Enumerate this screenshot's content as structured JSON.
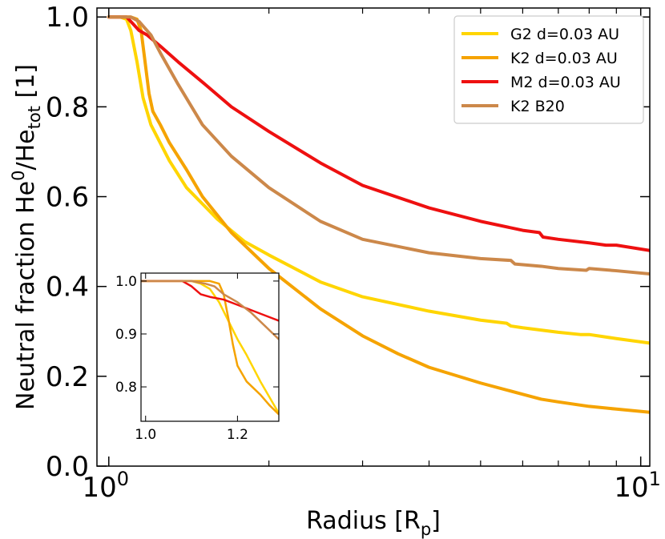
{
  "chart_data": {
    "type": "line",
    "title": "",
    "xlabel": "Radius [R",
    "xlabel_sub": "p",
    "xlabel_tail": "]",
    "ylabel_parts": {
      "main": "Neutral fraction He",
      "sup": "0",
      "mid": "/He",
      "sub": "tot",
      "tail": " [1]"
    },
    "xscale": "log",
    "xlim": [
      0.95,
      10.4
    ],
    "ylim": [
      0.0,
      1.02
    ],
    "yticks": [
      {
        "value": 0.0,
        "label": "0.0"
      },
      {
        "value": 0.2,
        "label": "0.2"
      },
      {
        "value": 0.4,
        "label": "0.4"
      },
      {
        "value": 0.6,
        "label": "0.6"
      },
      {
        "value": 0.8,
        "label": "0.8"
      },
      {
        "value": 1.0,
        "label": "1.0"
      }
    ],
    "xticks_major": [
      {
        "value": 1,
        "base": "10",
        "exp": "0"
      },
      {
        "value": 10,
        "base": "10",
        "exp": "1"
      }
    ],
    "xticks_minor": [
      2,
      3,
      4,
      5,
      6,
      7,
      8,
      9
    ],
    "legend_position": "top-right",
    "series": [
      {
        "name": "G2 d=0.03 AU",
        "color": "#FFD500",
        "points": [
          [
            1.0,
            1.0
          ],
          [
            1.05,
            1.0
          ],
          [
            1.08,
            0.995
          ],
          [
            1.1,
            0.97
          ],
          [
            1.13,
            0.9
          ],
          [
            1.16,
            0.82
          ],
          [
            1.2,
            0.76
          ],
          [
            1.3,
            0.68
          ],
          [
            1.4,
            0.62
          ],
          [
            1.6,
            0.55
          ],
          [
            1.8,
            0.5
          ],
          [
            2.0,
            0.47
          ],
          [
            2.5,
            0.41
          ],
          [
            3.0,
            0.377
          ],
          [
            4.0,
            0.345
          ],
          [
            5.0,
            0.325
          ],
          [
            5.6,
            0.318
          ],
          [
            5.7,
            0.312
          ],
          [
            6.0,
            0.308
          ],
          [
            7.0,
            0.298
          ],
          [
            7.7,
            0.293
          ],
          [
            8.0,
            0.293
          ],
          [
            9.0,
            0.284
          ],
          [
            10.4,
            0.274
          ]
        ]
      },
      {
        "name": "K2 d=0.03 AU",
        "color": "#F5A300",
        "points": [
          [
            1.0,
            1.0
          ],
          [
            1.1,
            1.0
          ],
          [
            1.13,
            0.995
          ],
          [
            1.15,
            0.97
          ],
          [
            1.17,
            0.9
          ],
          [
            1.19,
            0.83
          ],
          [
            1.21,
            0.79
          ],
          [
            1.25,
            0.76
          ],
          [
            1.3,
            0.72
          ],
          [
            1.4,
            0.66
          ],
          [
            1.5,
            0.6
          ],
          [
            1.7,
            0.52
          ],
          [
            2.0,
            0.44
          ],
          [
            2.5,
            0.35
          ],
          [
            3.0,
            0.29
          ],
          [
            3.5,
            0.25
          ],
          [
            4.0,
            0.22
          ],
          [
            5.0,
            0.185
          ],
          [
            6.0,
            0.16
          ],
          [
            6.5,
            0.149
          ],
          [
            7.0,
            0.143
          ],
          [
            8.0,
            0.133
          ],
          [
            9.0,
            0.127
          ],
          [
            10.4,
            0.12
          ]
        ]
      },
      {
        "name": "M2 d=0.03 AU",
        "color": "#EE1010",
        "points": [
          [
            1.0,
            1.0
          ],
          [
            1.08,
            1.0
          ],
          [
            1.11,
            0.985
          ],
          [
            1.14,
            0.97
          ],
          [
            1.18,
            0.96
          ],
          [
            1.25,
            0.935
          ],
          [
            1.35,
            0.9
          ],
          [
            1.5,
            0.855
          ],
          [
            1.7,
            0.8
          ],
          [
            2.0,
            0.745
          ],
          [
            2.5,
            0.675
          ],
          [
            3.0,
            0.625
          ],
          [
            4.0,
            0.575
          ],
          [
            5.0,
            0.545
          ],
          [
            6.0,
            0.525
          ],
          [
            6.45,
            0.52
          ],
          [
            6.55,
            0.51
          ],
          [
            7.0,
            0.505
          ],
          [
            8.0,
            0.497
          ],
          [
            8.6,
            0.492
          ],
          [
            9.0,
            0.492
          ],
          [
            10.4,
            0.48
          ]
        ]
      },
      {
        "name": "K2 B20",
        "color": "#CC884A",
        "points": [
          [
            1.0,
            1.0
          ],
          [
            1.1,
            1.0
          ],
          [
            1.14,
            0.99
          ],
          [
            1.2,
            0.96
          ],
          [
            1.25,
            0.92
          ],
          [
            1.35,
            0.85
          ],
          [
            1.5,
            0.76
          ],
          [
            1.7,
            0.69
          ],
          [
            2.0,
            0.62
          ],
          [
            2.5,
            0.545
          ],
          [
            3.0,
            0.505
          ],
          [
            4.0,
            0.475
          ],
          [
            5.0,
            0.462
          ],
          [
            5.7,
            0.458
          ],
          [
            5.8,
            0.45
          ],
          [
            6.5,
            0.445
          ],
          [
            7.0,
            0.44
          ],
          [
            7.9,
            0.436
          ],
          [
            8.0,
            0.44
          ],
          [
            9.0,
            0.435
          ],
          [
            10.4,
            0.428
          ]
        ]
      }
    ],
    "inset": {
      "xlim": [
        0.99,
        1.29
      ],
      "ylim": [
        0.735,
        1.015
      ],
      "xticks": [
        {
          "value": 1.0,
          "label": "1.0"
        },
        {
          "value": 1.2,
          "label": "1.2"
        }
      ],
      "yticks": [
        {
          "value": 0.8,
          "label": "0.8"
        },
        {
          "value": 0.9,
          "label": "0.9"
        },
        {
          "value": 1.0,
          "label": "1.0"
        }
      ],
      "series": [
        {
          "name": "G2 d=0.03 AU",
          "color": "#FFD500",
          "points": [
            [
              0.99,
              1.0
            ],
            [
              1.1,
              1.0
            ],
            [
              1.12,
              0.995
            ],
            [
              1.14,
              0.985
            ],
            [
              1.16,
              0.96
            ],
            [
              1.18,
              0.925
            ],
            [
              1.2,
              0.89
            ],
            [
              1.22,
              0.86
            ],
            [
              1.25,
              0.81
            ],
            [
              1.27,
              0.78
            ],
            [
              1.29,
              0.75
            ]
          ]
        },
        {
          "name": "K2 d=0.03 AU",
          "color": "#F5A300",
          "points": [
            [
              0.99,
              1.0
            ],
            [
              1.1,
              1.0
            ],
            [
              1.14,
              1.0
            ],
            [
              1.16,
              0.995
            ],
            [
              1.17,
              0.975
            ],
            [
              1.18,
              0.93
            ],
            [
              1.19,
              0.88
            ],
            [
              1.2,
              0.84
            ],
            [
              1.22,
              0.81
            ],
            [
              1.25,
              0.785
            ],
            [
              1.27,
              0.765
            ],
            [
              1.29,
              0.748
            ]
          ]
        },
        {
          "name": "M2 d=0.03 AU",
          "color": "#EE1010",
          "points": [
            [
              0.99,
              1.0
            ],
            [
              1.08,
              1.0
            ],
            [
              1.1,
              0.99
            ],
            [
              1.12,
              0.975
            ],
            [
              1.14,
              0.97
            ],
            [
              1.17,
              0.965
            ],
            [
              1.2,
              0.955
            ],
            [
              1.23,
              0.945
            ],
            [
              1.26,
              0.935
            ],
            [
              1.29,
              0.925
            ]
          ]
        },
        {
          "name": "K2 B20",
          "color": "#CC884A",
          "points": [
            [
              0.99,
              1.0
            ],
            [
              1.1,
              1.0
            ],
            [
              1.13,
              0.995
            ],
            [
              1.15,
              0.99
            ],
            [
              1.17,
              0.975
            ],
            [
              1.2,
              0.96
            ],
            [
              1.23,
              0.94
            ],
            [
              1.26,
              0.915
            ],
            [
              1.29,
              0.89
            ]
          ]
        }
      ]
    }
  }
}
